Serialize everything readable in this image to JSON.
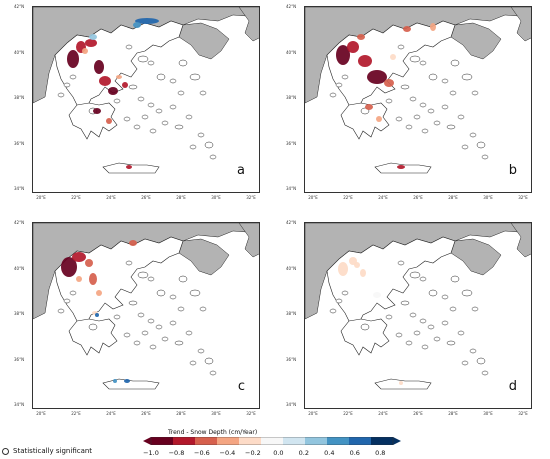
{
  "panels": [
    {
      "id": "a",
      "label": "a"
    },
    {
      "id": "b",
      "label": "b"
    },
    {
      "id": "c",
      "label": "c"
    },
    {
      "id": "d",
      "label": "d"
    }
  ],
  "lat_ticks": [
    "42°N",
    "40°N",
    "38°N",
    "36°N",
    "34°N"
  ],
  "lon_ticks": [
    "20°E",
    "22°E",
    "24°E",
    "26°E",
    "28°E",
    "30°E",
    "32°E"
  ],
  "legend": {
    "significance_label": "Statistically significant",
    "colorbar_title": "Trend - Snow Depth (cm/Year)",
    "colorbar_ticks": [
      "−1.0",
      "−0.8",
      "−0.6",
      "−0.4",
      "−0.2",
      "0.0",
      "0.2",
      "0.4",
      "0.6",
      "0.8"
    ],
    "colorbar_range": [
      -1.0,
      0.9
    ],
    "colormap": [
      "#67001f",
      "#b2182b",
      "#d6604d",
      "#f4a582",
      "#fddbc7",
      "#f7f7f7",
      "#d1e5f0",
      "#92c5de",
      "#4393c3",
      "#2166ac",
      "#053061"
    ]
  },
  "colors": {
    "land_neighbor": "#b3b3b3",
    "land_greece": "#ffffff",
    "coast": "#222222"
  }
}
